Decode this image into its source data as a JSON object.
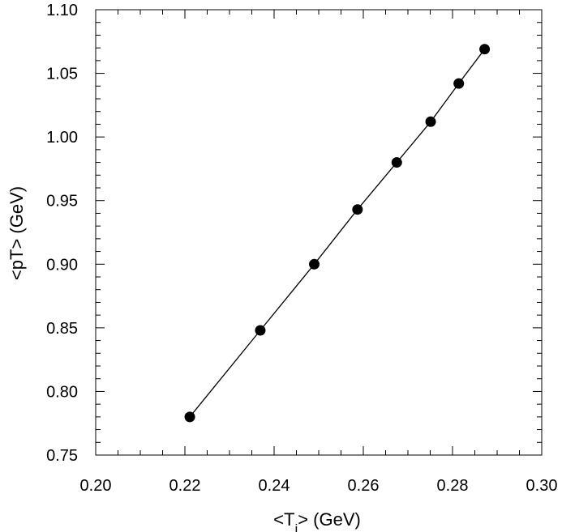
{
  "chart_data": {
    "type": "scatter",
    "title": "",
    "xlabel": "<Ti> (GeV)",
    "xlabel_parts": {
      "prefix": "<T",
      "subscript": "i",
      "suffix": "> (GeV)"
    },
    "ylabel": "<pT> (GeV)",
    "xlim": [
      0.2,
      0.3
    ],
    "ylim": [
      0.75,
      1.1
    ],
    "x_ticks": [
      "0.20",
      "0.22",
      "0.24",
      "0.26",
      "0.28",
      "0.30"
    ],
    "y_ticks": [
      "0.75",
      "0.80",
      "0.85",
      "0.90",
      "0.95",
      "1.00",
      "1.05",
      "1.10"
    ],
    "x_tick_values": [
      0.2,
      0.22,
      0.24,
      0.26,
      0.28,
      0.3
    ],
    "y_tick_values": [
      0.75,
      0.8,
      0.85,
      0.9,
      0.95,
      1.0,
      1.05,
      1.1
    ],
    "x_minor_step": 0.005,
    "y_minor_step": 0.01,
    "grid": false,
    "legend": "none",
    "series": [
      {
        "style": "line-with-markers",
        "color": "#000000",
        "x": [
          0.2211,
          0.2369,
          0.249,
          0.2587,
          0.2675,
          0.2751,
          0.2814,
          0.2872
        ],
        "y": [
          0.78,
          0.848,
          0.9,
          0.943,
          0.98,
          1.012,
          1.042,
          1.069
        ]
      }
    ]
  }
}
